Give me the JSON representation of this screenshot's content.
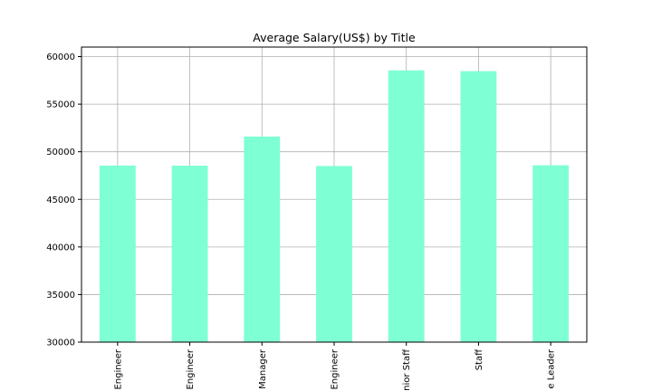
{
  "chart_data": {
    "type": "bar",
    "title": "Average Salary(US$) by Title",
    "xlabel": "",
    "ylabel": "",
    "categories": [
      "Engineer",
      "Engineer",
      "Manager",
      "Engineer",
      "nior Staff",
      "Staff",
      "e Leader"
    ],
    "values": [
      48550,
      48540,
      51600,
      48500,
      58550,
      58470,
      48580
    ],
    "ylim": [
      30000,
      61000
    ],
    "yticks": [
      30000,
      35000,
      40000,
      45000,
      50000,
      55000,
      60000
    ],
    "grid": true,
    "bar_color": "#7fffd4"
  }
}
